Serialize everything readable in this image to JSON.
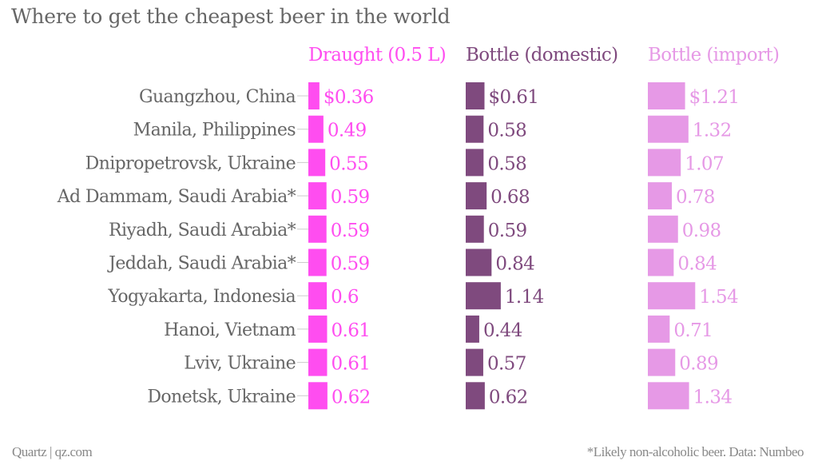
{
  "title": "Where to get the cheapest beer in the world",
  "footer": {
    "source_left": "Quartz | qz.com",
    "note_right": "*Likely non-alcoholic beer. Data: Numbeo"
  },
  "colors": {
    "label_text": "#666666",
    "tick": "#cccccc"
  },
  "chart_data": {
    "type": "bar",
    "orientation": "horizontal",
    "layout": "small-multiples (three columns)",
    "title": "Where to get the cheapest beer in the world",
    "xlabel": "",
    "ylabel": "",
    "units": "USD",
    "grid": false,
    "legend": "top",
    "categories": [
      "Guangzhou, China",
      "Manila, Philippines",
      "Dnipropetrovsk, Ukraine",
      "Ad Dammam, Saudi Arabia*",
      "Riyadh, Saudi Arabia*",
      "Jeddah, Saudi Arabia*",
      "Yogyakarta, Indonesia",
      "Hanoi, Vietnam",
      "Lviv, Ukraine",
      "Donetsk, Ukraine"
    ],
    "series": [
      {
        "name": "Draught (0.5 L)",
        "color": "#ff4df0",
        "values": [
          0.36,
          0.49,
          0.55,
          0.59,
          0.59,
          0.59,
          0.6,
          0.61,
          0.61,
          0.62
        ],
        "labels": [
          "$0.36",
          "0.49",
          "0.55",
          "0.59",
          "0.59",
          "0.59",
          "0.6",
          "0.61",
          "0.61",
          "0.62"
        ]
      },
      {
        "name": "Bottle (domestic)",
        "color": "#7f4a7e",
        "values": [
          0.61,
          0.58,
          0.58,
          0.68,
          0.59,
          0.84,
          1.14,
          0.44,
          0.57,
          0.62
        ],
        "labels": [
          "$0.61",
          "0.58",
          "0.58",
          "0.68",
          "0.59",
          "0.84",
          "1.14",
          "0.44",
          "0.57",
          "0.62"
        ]
      },
      {
        "name": "Bottle (import)",
        "color": "#e699e6",
        "values": [
          1.21,
          1.32,
          1.07,
          0.78,
          0.98,
          0.84,
          1.54,
          0.71,
          0.89,
          1.34
        ],
        "labels": [
          "$1.21",
          "1.32",
          "1.07",
          "0.78",
          "0.98",
          "0.84",
          "1.54",
          "0.71",
          "0.89",
          "1.34"
        ]
      }
    ]
  }
}
